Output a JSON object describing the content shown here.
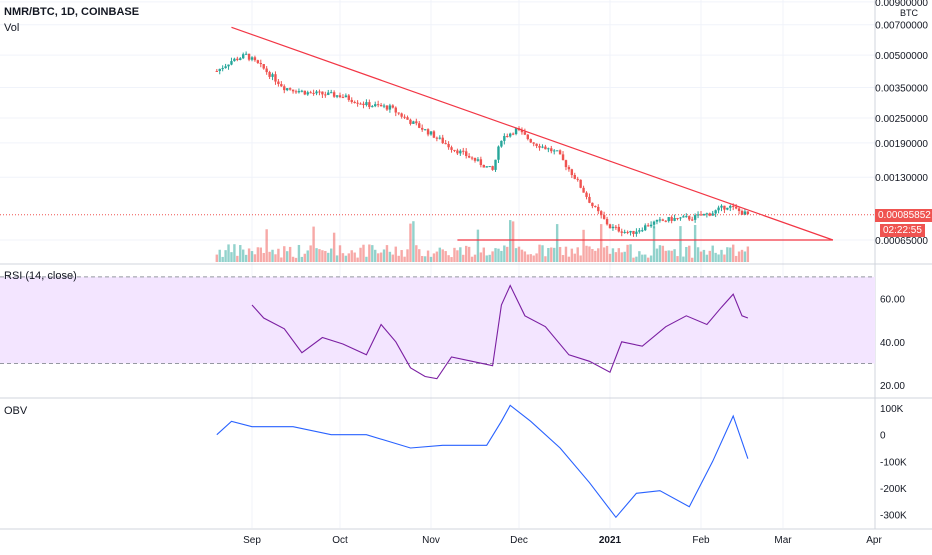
{
  "header": {
    "symbol_line": "NMR/BTC, 1D, COINBASE",
    "vol_label": "Vol",
    "currency": "BTC"
  },
  "current_price": {
    "price": "0.00085852",
    "countdown": "02:22:55"
  },
  "colors": {
    "up": "#26a69a",
    "down": "#ef5350",
    "trendline": "#f23645",
    "rsi_line": "#7b1fa2",
    "rsi_band": "#f3e5ff",
    "obv_line": "#2962ff",
    "grid": "#f0f3fa",
    "text": "#131722"
  },
  "chart_data": [
    {
      "type": "candlestick",
      "name": "NMR/BTC",
      "scale": "log",
      "ylim": [
        0.0005,
        0.009
      ],
      "y_ticks": [
        "0.00900000",
        "0.00700000",
        "0.00500000",
        "0.00350000",
        "0.00250000",
        "0.00190000",
        "0.00130000",
        "0.00065000"
      ],
      "x_ticks": [
        "Sep",
        "Oct",
        "Nov",
        "Dec",
        "2021",
        "Feb",
        "Mar",
        "Apr"
      ],
      "annotations": [
        {
          "type": "trendline",
          "from": [
            "2020-08-25",
            0.0068
          ],
          "to": [
            "2021-03-18",
            0.00065
          ]
        },
        {
          "type": "horizontal_segment",
          "from": [
            "2020-11-10",
            0.00065
          ],
          "to": [
            "2021-03-18",
            0.00065
          ]
        }
      ],
      "approx_close_path": [
        [
          "2020-08-20",
          0.0042
        ],
        [
          "2020-08-25",
          0.0047
        ],
        [
          "2020-08-30",
          0.005
        ],
        [
          "2020-09-05",
          0.0043
        ],
        [
          "2020-09-12",
          0.0035
        ],
        [
          "2020-09-20",
          0.0033
        ],
        [
          "2020-10-01",
          0.0032
        ],
        [
          "2020-10-10",
          0.0029
        ],
        [
          "2020-10-18",
          0.0028
        ],
        [
          "2020-10-25",
          0.0024
        ],
        [
          "2020-11-01",
          0.0021
        ],
        [
          "2020-11-08",
          0.0018
        ],
        [
          "2020-11-15",
          0.0016
        ],
        [
          "2020-11-22",
          0.0014
        ],
        [
          "2020-11-25",
          0.002
        ],
        [
          "2020-11-30",
          0.0022
        ],
        [
          "2020-12-06",
          0.0019
        ],
        [
          "2020-12-14",
          0.0017
        ],
        [
          "2020-12-20",
          0.0013
        ],
        [
          "2020-12-26",
          0.00095
        ],
        [
          "2021-01-01",
          0.00075
        ],
        [
          "2021-01-08",
          0.0007
        ],
        [
          "2021-01-15",
          0.00078
        ],
        [
          "2021-01-22",
          0.00082
        ],
        [
          "2021-01-29",
          0.00083
        ],
        [
          "2021-02-05",
          0.00088
        ],
        [
          "2021-02-10",
          0.00095
        ],
        [
          "2021-02-15",
          0.00088
        ],
        [
          "2021-02-17",
          0.00085852
        ]
      ]
    },
    {
      "type": "line",
      "name": "RSI (14, close)",
      "ylim": [
        15,
        75
      ],
      "y_ticks": [
        "60.00",
        "40.00",
        "20.00"
      ],
      "bands": [
        70,
        30
      ],
      "values": [
        [
          "2020-09-01",
          57
        ],
        [
          "2020-09-05",
          51
        ],
        [
          "2020-09-12",
          46
        ],
        [
          "2020-09-18",
          35
        ],
        [
          "2020-09-25",
          42
        ],
        [
          "2020-10-02",
          39
        ],
        [
          "2020-10-10",
          34
        ],
        [
          "2020-10-15",
          48
        ],
        [
          "2020-10-20",
          40
        ],
        [
          "2020-10-25",
          28
        ],
        [
          "2020-10-30",
          24
        ],
        [
          "2020-11-03",
          23
        ],
        [
          "2020-11-08",
          33
        ],
        [
          "2020-11-15",
          31
        ],
        [
          "2020-11-22",
          29
        ],
        [
          "2020-11-25",
          57
        ],
        [
          "2020-11-28",
          66
        ],
        [
          "2020-12-03",
          52
        ],
        [
          "2020-12-10",
          47
        ],
        [
          "2020-12-18",
          34
        ],
        [
          "2020-12-25",
          31
        ],
        [
          "2021-01-01",
          26
        ],
        [
          "2021-01-05",
          40
        ],
        [
          "2021-01-12",
          38
        ],
        [
          "2021-01-20",
          47
        ],
        [
          "2021-01-27",
          52
        ],
        [
          "2021-02-03",
          48
        ],
        [
          "2021-02-08",
          56
        ],
        [
          "2021-02-12",
          62
        ],
        [
          "2021-02-15",
          52
        ],
        [
          "2021-02-17",
          51
        ]
      ]
    },
    {
      "type": "line",
      "name": "OBV",
      "ylim": [
        -350000,
        130000
      ],
      "y_ticks": [
        "100K",
        "0",
        "-100K",
        "-200K",
        "-300K"
      ],
      "values": [
        [
          "2020-08-20",
          0
        ],
        [
          "2020-08-25",
          50000
        ],
        [
          "2020-09-01",
          30000
        ],
        [
          "2020-09-15",
          30000
        ],
        [
          "2020-09-28",
          0
        ],
        [
          "2020-10-10",
          0
        ],
        [
          "2020-10-25",
          -50000
        ],
        [
          "2020-11-05",
          -40000
        ],
        [
          "2020-11-20",
          -40000
        ],
        [
          "2020-11-25",
          50000
        ],
        [
          "2020-11-28",
          110000
        ],
        [
          "2020-12-05",
          50000
        ],
        [
          "2020-12-15",
          -50000
        ],
        [
          "2020-12-25",
          -180000
        ],
        [
          "2021-01-03",
          -310000
        ],
        [
          "2021-01-10",
          -220000
        ],
        [
          "2021-01-18",
          -210000
        ],
        [
          "2021-01-28",
          -270000
        ],
        [
          "2021-02-05",
          -100000
        ],
        [
          "2021-02-12",
          70000
        ],
        [
          "2021-02-17",
          -90000
        ]
      ]
    }
  ]
}
